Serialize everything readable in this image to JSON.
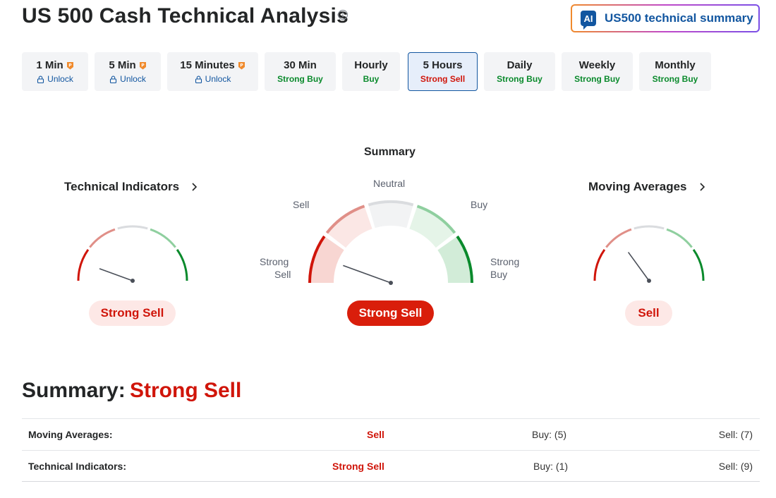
{
  "page": {
    "title": "US 500 Cash Technical Analysis",
    "ai_button_badge": "AI",
    "ai_button_label": "US500 technical summary"
  },
  "timeframes": [
    {
      "name": "1 Min",
      "sub": "Unlock",
      "locked": true,
      "active": false
    },
    {
      "name": "5 Min",
      "sub": "Unlock",
      "locked": true,
      "active": false
    },
    {
      "name": "15 Minutes",
      "sub": "Unlock",
      "locked": true,
      "active": false
    },
    {
      "name": "30 Min",
      "sub": "Strong Buy",
      "locked": false,
      "active": false
    },
    {
      "name": "Hourly",
      "sub": "Buy",
      "locked": false,
      "active": false
    },
    {
      "name": "5 Hours",
      "sub": "Strong Sell",
      "locked": false,
      "active": true
    },
    {
      "name": "Daily",
      "sub": "Strong Buy",
      "locked": false,
      "active": false
    },
    {
      "name": "Weekly",
      "sub": "Strong Buy",
      "locked": false,
      "active": false
    },
    {
      "name": "Monthly",
      "sub": "Strong Buy",
      "locked": false,
      "active": false
    }
  ],
  "gauges": {
    "summary_title": "Summary",
    "labels": {
      "neutral": "Neutral",
      "sell": "Sell",
      "buy": "Buy",
      "strong_sell_1": "Strong",
      "strong_sell_2": "Sell",
      "strong_buy_1": "Strong",
      "strong_buy_2": "Buy"
    },
    "technical": {
      "title": "Technical Indicators",
      "result": "Strong Sell",
      "needle_angle_deg": 160
    },
    "summary": {
      "result": "Strong Sell",
      "needle_angle_deg": 160
    },
    "moving": {
      "title": "Moving Averages",
      "result": "Sell",
      "needle_angle_deg": 126
    }
  },
  "summary": {
    "heading": "Summary:",
    "value": "Strong Sell",
    "rows": [
      {
        "name": "Moving Averages:",
        "status": "Sell",
        "buy": "Buy: (5)",
        "sell": "Sell: (7)"
      },
      {
        "name": "Technical Indicators:",
        "status": "Strong Sell",
        "buy": "Buy: (1)",
        "sell": "Sell: (9)"
      }
    ]
  },
  "colors": {
    "brand_blue": "#1256a0",
    "sell_red": "#d0150a",
    "buy_green": "#0a8a2c"
  }
}
